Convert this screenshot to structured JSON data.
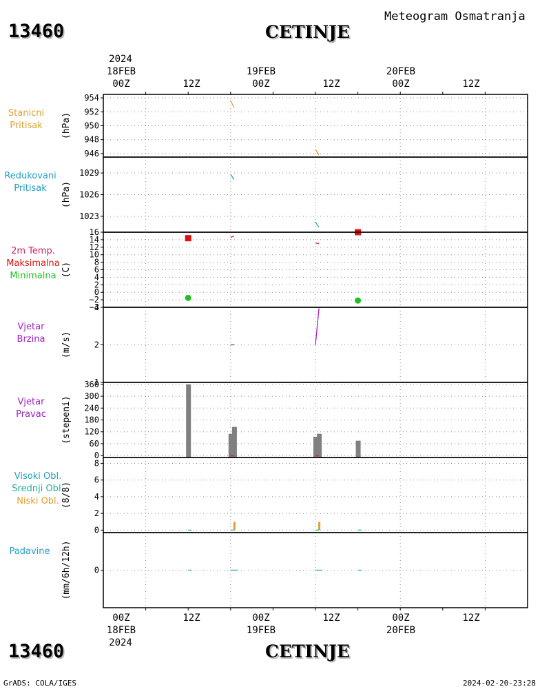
{
  "header": {
    "station_id": "13460",
    "station_name": "CETINJE",
    "subtitle": "Meteogram Osmatranja"
  },
  "footer": {
    "station_id": "13460",
    "station_name": "CETINJE",
    "credit": "GrADS: COLA/IGES",
    "timestamp": "2024-02-20-23:28"
  },
  "time_axis": {
    "year": "2024",
    "day_labels": [
      "18FEB",
      "19FEB",
      "20FEB"
    ],
    "hour_labels": [
      "00Z",
      "12Z",
      "00Z",
      "12Z",
      "00Z",
      "12Z"
    ]
  },
  "panels": [
    {
      "key": "pressure",
      "labels": [
        {
          "text": "Stanicni",
          "color": "#e0a030"
        },
        {
          "text": "Pritisak",
          "color": "#e0a030"
        }
      ],
      "unit": "(hPa)"
    },
    {
      "key": "mslp",
      "labels": [
        {
          "text": "Redukovani",
          "color": "#20a0c0"
        },
        {
          "text": "Pritisak",
          "color": "#20a0c0"
        }
      ],
      "unit": "(hPa)"
    },
    {
      "key": "temp",
      "labels": [
        {
          "text": "2m Temp.",
          "color": "#d0206a"
        },
        {
          "text": "Maksimalna",
          "color": "#e01010"
        },
        {
          "text": "Minimalna",
          "color": "#20c020"
        }
      ],
      "unit": "(C)"
    },
    {
      "key": "wspd",
      "labels": [
        {
          "text": "Vjetar",
          "color": "#a020c0"
        },
        {
          "text": "Brzina",
          "color": "#a020c0"
        }
      ],
      "unit": "(m/s)"
    },
    {
      "key": "wdir",
      "labels": [
        {
          "text": "Vjetar",
          "color": "#a020c0"
        },
        {
          "text": "Pravac",
          "color": "#a020c0"
        }
      ],
      "unit": "(stepeni)"
    },
    {
      "key": "cloud",
      "labels": [
        {
          "text": "Visoki Obl.",
          "color": "#20a0c0"
        },
        {
          "text": "Srednji Obl.",
          "color": "#20b0a0"
        },
        {
          "text": "Niski Obl.",
          "color": "#e0a030"
        }
      ],
      "unit": "(8/8)"
    },
    {
      "key": "precip",
      "labels": [
        {
          "text": "Padavine",
          "color": "#20a0c0"
        }
      ],
      "unit": "(mm/6h/12h)"
    }
  ],
  "chart_data": [
    {
      "type": "line",
      "panel": "pressure",
      "ylim": [
        945.5,
        954.5
      ],
      "ticks": [
        954,
        952,
        950,
        948,
        946
      ],
      "grid": true,
      "series": [
        {
          "color": "#e0a030",
          "segments": [
            [
              [
                12.0,
                953.6
              ],
              [
                12.5,
                952.6
              ]
            ],
            [
              [
                24.0,
                946.6
              ],
              [
                24.5,
                945.8
              ]
            ]
          ]
        }
      ]
    },
    {
      "type": "line",
      "panel": "mslp",
      "ylim": [
        1020.8,
        1031.2
      ],
      "ticks": [
        1029,
        1026,
        1023
      ],
      "grid": true,
      "series": [
        {
          "color": "#20a0c0",
          "segments": [
            [
              [
                12.0,
                1028.8
              ],
              [
                12.5,
                1028.1
              ]
            ],
            [
              [
                24.0,
                1022.2
              ],
              [
                24.5,
                1021.5
              ]
            ]
          ]
        }
      ]
    },
    {
      "type": "scatter",
      "panel": "temp",
      "ylim": [
        -4,
        16
      ],
      "ticks": [
        16,
        14,
        12,
        10,
        8,
        6,
        4,
        2,
        0,
        -2,
        -4
      ],
      "tick_labels": [
        "16",
        "14",
        "12",
        "10",
        "8",
        "6",
        "4",
        "2",
        "0",
        "−2",
        "−4"
      ],
      "grid": true,
      "series": [
        {
          "color": "#d0206a",
          "kind": "line",
          "segments": [
            [
              [
                12.0,
                14.6
              ],
              [
                12.5,
                15.0
              ]
            ],
            [
              [
                24.0,
                13.1
              ],
              [
                24.5,
                13.0
              ]
            ]
          ]
        },
        {
          "color": "#e01010",
          "kind": "square",
          "points": [
            [
              6.0,
              14.4
            ],
            [
              30.0,
              16.0
            ]
          ]
        },
        {
          "color": "#20c020",
          "kind": "dot",
          "points": [
            [
              6.0,
              -1.5
            ],
            [
              30.0,
              -2.2
            ]
          ]
        }
      ]
    },
    {
      "type": "line",
      "panel": "wspd",
      "ylim": [
        1,
        3
      ],
      "ticks": [
        3,
        2,
        1
      ],
      "grid": true,
      "series": [
        {
          "color": "#a020c0",
          "segments": [
            [
              [
                12.0,
                2.0
              ],
              [
                12.5,
                2.0
              ]
            ],
            [
              [
                24.0,
                2.0
              ],
              [
                24.5,
                2.97
              ]
            ]
          ]
        }
      ]
    },
    {
      "type": "bar",
      "panel": "wdir",
      "ylim": [
        -10,
        370
      ],
      "ticks": [
        360,
        300,
        240,
        180,
        120,
        60,
        0
      ],
      "grid": true,
      "bars": [
        [
          6.0,
          360
        ],
        [
          12.0,
          110
        ],
        [
          12.5,
          145
        ],
        [
          30.0,
          75
        ],
        [
          24.0,
          95
        ],
        [
          24.5,
          110
        ]
      ],
      "series": [
        {
          "color": "#e02020",
          "segments": [
            [
              [
                12.0,
                0
              ],
              [
                12.5,
                0
              ]
            ],
            [
              [
                24.0,
                0
              ],
              [
                24.5,
                0
              ]
            ]
          ]
        }
      ]
    },
    {
      "type": "bar",
      "panel": "cloud",
      "ylim": [
        -0.3,
        8.7
      ],
      "ticks": [
        8,
        6,
        4,
        2,
        0
      ],
      "grid": true,
      "bars": [
        [
          12.5,
          1.0
        ],
        [
          24.5,
          1.0
        ]
      ],
      "series": [
        {
          "color": "#20b0a0",
          "segments": [
            [
              [
                6.0,
                0
              ],
              [
                6.5,
                0
              ]
            ],
            [
              [
                12.0,
                0
              ],
              [
                12.5,
                0
              ]
            ],
            [
              [
                30.0,
                0
              ],
              [
                30.5,
                0
              ]
            ],
            [
              [
                24.0,
                0
              ],
              [
                24.5,
                0
              ]
            ]
          ]
        }
      ]
    },
    {
      "type": "line",
      "panel": "precip",
      "ylim": [
        -1,
        1
      ],
      "ticks": [
        0
      ],
      "grid": true,
      "series": [
        {
          "color": "#20a0c0",
          "segments": [
            [
              [
                6.0,
                0
              ],
              [
                6.5,
                0
              ]
            ],
            [
              [
                12.0,
                0
              ],
              [
                13.0,
                0
              ]
            ],
            [
              [
                30.0,
                0
              ],
              [
                30.5,
                0
              ]
            ],
            [
              [
                24.0,
                0
              ],
              [
                25.0,
                0
              ]
            ]
          ]
        }
      ]
    }
  ]
}
